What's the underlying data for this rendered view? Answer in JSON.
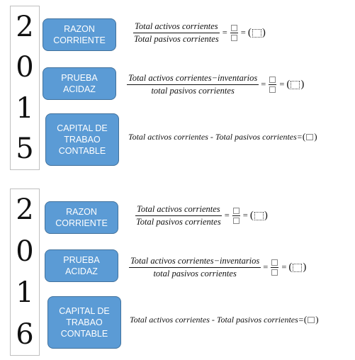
{
  "sections": [
    {
      "digits": [
        "2",
        "0",
        "1",
        "5"
      ],
      "razon_label": "RAZON\nCORRIENTE",
      "prueba_label": "PRUEBA\nACIDAZ",
      "capital_label": "CAPITAL DE\nTRABAO\nCONTABLE",
      "razon_num": "Total activos corrientes",
      "razon_den": "Total pasivos corrientes",
      "prueba_num": "Total activos corrientes−inventarios",
      "prueba_den": "total pasivos corrientes",
      "capital_formula": "Total activos corrientes - Total pasivos corrientes="
    },
    {
      "digits": [
        "2",
        "0",
        "1",
        "6"
      ],
      "razon_label": "RAZON\nCORRIENTE",
      "prueba_label": "PRUEBA\nACIDAZ",
      "capital_label": "CAPITAL DE\nTRABAO\nCONTABLE",
      "razon_num": "Total activos corrientes",
      "razon_den": "Total pasivos corrientes",
      "prueba_num": "Total activos corrientes−inventarios",
      "prueba_den": "total pasivos corrientes",
      "capital_formula": "Total activos corrientes - Total pasivos corrientes="
    }
  ],
  "symbols": {
    "equals": "=",
    "open_paren": "(",
    "close_paren": ")"
  }
}
